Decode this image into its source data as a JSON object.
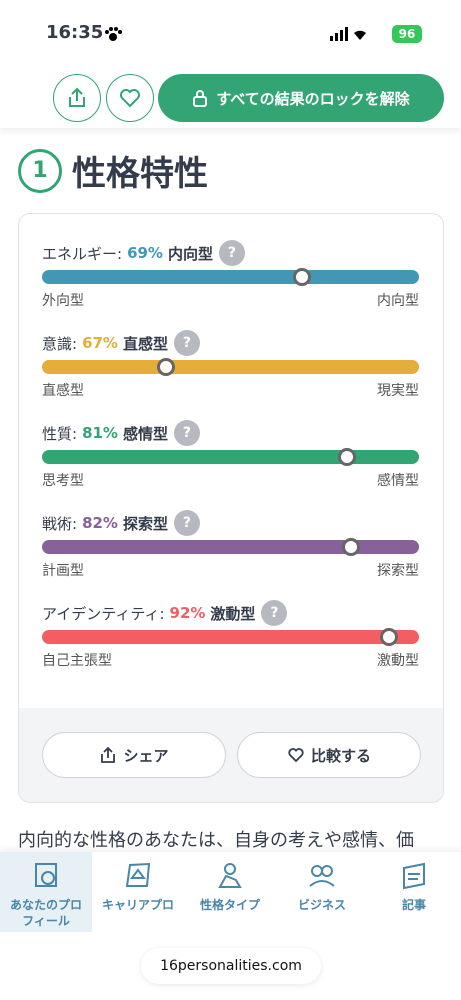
{
  "status_bar": {
    "time": "16:35",
    "battery": "96"
  },
  "header": {
    "unlock_button": "すべての結果のロックを解除"
  },
  "section": {
    "number": "1",
    "title": "性格特性"
  },
  "traits": [
    {
      "name": "エネルギー:",
      "value": 69,
      "value_label": "69%",
      "type": "内向型",
      "left": "外向型",
      "right": "内向型",
      "color": "#4298b4"
    },
    {
      "name": "意識:",
      "value": 67,
      "value_label": "67%",
      "type": "直感型",
      "left": "直感型",
      "right": "現実型",
      "color": "#e4ae3a"
    },
    {
      "name": "性質:",
      "value": 81,
      "value_label": "81%",
      "type": "感情型",
      "left": "思考型",
      "right": "感情型",
      "color": "#33a474"
    },
    {
      "name": "戦術:",
      "value": 82,
      "value_label": "82%",
      "type": "探索型",
      "left": "計画型",
      "right": "探索型",
      "color": "#88619a"
    },
    {
      "name": "アイデンティティ:",
      "value": 92,
      "value_label": "92%",
      "type": "激動型",
      "left": "自己主張型",
      "right": "激動型",
      "color": "#f25e62"
    }
  ],
  "help_icon": "?",
  "card_buttons": {
    "share": "シェア",
    "compare": "比較する"
  },
  "paragraph": "内向的な性格のあなたは、自身の考えや感情、価",
  "nav": [
    "あなたのプロフィール",
    "キャリアプロ",
    "性格タイプ",
    "ビジネス",
    "記事"
  ],
  "url": "16personalities.com"
}
